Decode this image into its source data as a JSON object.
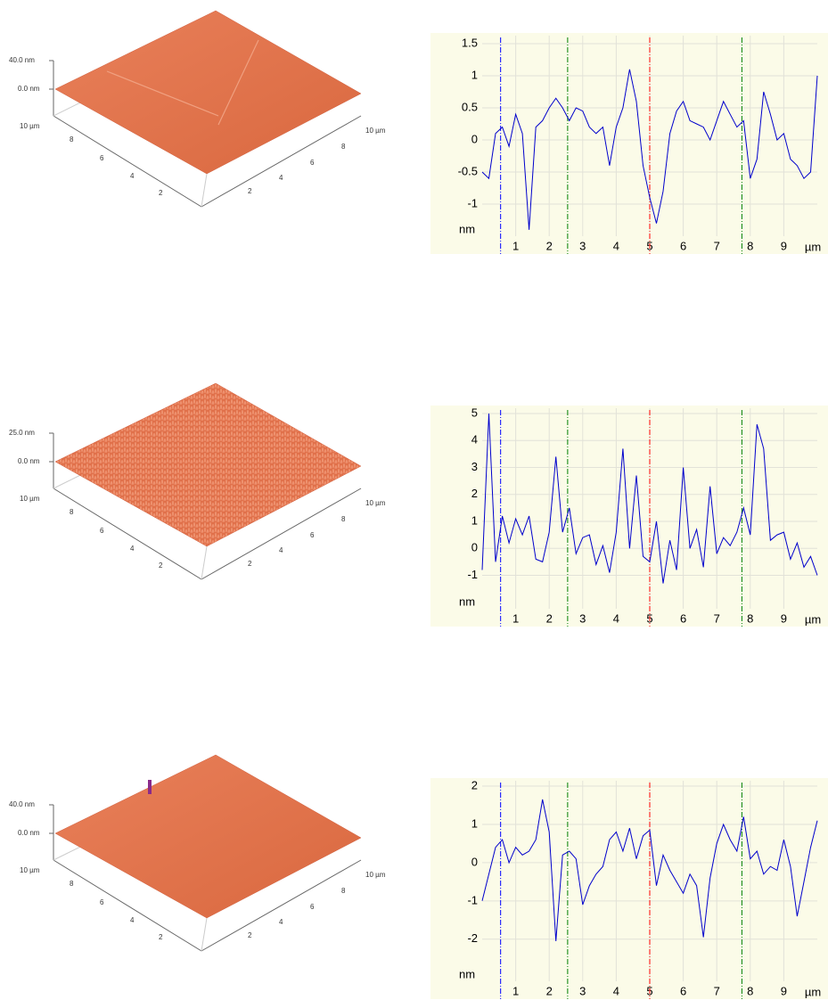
{
  "surfaces": [
    {
      "z_labels": [
        "40.0 nm",
        "0.0 nm"
      ],
      "left_labels": [
        "10 µm",
        "8",
        "6",
        "4",
        "2"
      ],
      "right_labels": [
        "10 µm",
        "8",
        "6",
        "4",
        "2"
      ]
    },
    {
      "z_labels": [
        "25.0 nm",
        "0.0 nm"
      ],
      "left_labels": [
        "10 µm",
        "8",
        "6",
        "4",
        "2"
      ],
      "right_labels": [
        "10 µm",
        "8",
        "6",
        "4",
        "2"
      ]
    },
    {
      "z_labels": [
        "40.0 nm",
        "0.0 nm"
      ],
      "left_labels": [
        "10 µm",
        "8",
        "6",
        "4",
        "2"
      ],
      "right_labels": [
        "10 µm",
        "8",
        "6",
        "4",
        "2"
      ]
    }
  ],
  "chart_data": [
    {
      "type": "line",
      "xlabel": "µm",
      "ylabel": "nm",
      "xlim": [
        0,
        10
      ],
      "ylim": [
        -1.5,
        1.625
      ],
      "xticks": [
        1,
        2,
        3,
        4,
        5,
        6,
        7,
        8,
        9
      ],
      "yticks": [
        1.5,
        1,
        0.5,
        0,
        -0.5,
        -1
      ],
      "grid": true,
      "markers": [
        {
          "x": 0.55,
          "color": "#0000ff"
        },
        {
          "x": 2.55,
          "color": "#008000"
        },
        {
          "x": 5.0,
          "color": "#ff0000"
        },
        {
          "x": 7.75,
          "color": "#008000"
        }
      ],
      "x": [
        0,
        0.2,
        0.4,
        0.6,
        0.8,
        1,
        1.2,
        1.4,
        1.6,
        1.8,
        2,
        2.2,
        2.4,
        2.6,
        2.8,
        3,
        3.2,
        3.4,
        3.6,
        3.8,
        4,
        4.2,
        4.4,
        4.6,
        4.8,
        5,
        5.2,
        5.4,
        5.6,
        5.8,
        6,
        6.2,
        6.4,
        6.6,
        6.8,
        7,
        7.2,
        7.4,
        7.6,
        7.8,
        8,
        8.2,
        8.4,
        8.6,
        8.8,
        9,
        9.2,
        9.4,
        9.6,
        9.8,
        10
      ],
      "series": [
        {
          "color": "#0000cc",
          "values": [
            -0.5,
            -0.6,
            0.1,
            0.2,
            -0.1,
            0.4,
            0.1,
            -1.4,
            0.2,
            0.3,
            0.5,
            0.65,
            0.5,
            0.3,
            0.5,
            0.45,
            0.2,
            0.1,
            0.2,
            -0.4,
            0.2,
            0.5,
            1.1,
            0.6,
            -0.4,
            -0.9,
            -1.3,
            -0.8,
            0.1,
            0.45,
            0.6,
            0.3,
            0.25,
            0.2,
            0.0,
            0.3,
            0.6,
            0.4,
            0.2,
            0.3,
            -0.6,
            -0.3,
            0.75,
            0.4,
            0.0,
            0.1,
            -0.3,
            -0.4,
            -0.6,
            -0.5,
            1.0
          ]
        }
      ]
    },
    {
      "type": "line",
      "xlabel": "µm",
      "ylabel": "nm",
      "xlim": [
        0,
        10
      ],
      "ylim": [
        -2.24,
        5.2
      ],
      "xticks": [
        1,
        2,
        3,
        4,
        5,
        6,
        7,
        8,
        9
      ],
      "yticks": [
        5,
        4,
        3,
        2,
        1,
        0,
        -1
      ],
      "grid": true,
      "markers": [
        {
          "x": 0.55,
          "color": "#0000ff"
        },
        {
          "x": 2.55,
          "color": "#008000"
        },
        {
          "x": 5.0,
          "color": "#ff0000"
        },
        {
          "x": 7.75,
          "color": "#008000"
        }
      ],
      "x": [
        0,
        0.2,
        0.4,
        0.6,
        0.8,
        1,
        1.2,
        1.4,
        1.6,
        1.8,
        2,
        2.2,
        2.4,
        2.6,
        2.8,
        3,
        3.2,
        3.4,
        3.6,
        3.8,
        4,
        4.2,
        4.4,
        4.6,
        4.8,
        5,
        5.2,
        5.4,
        5.6,
        5.8,
        6,
        6.2,
        6.4,
        6.6,
        6.8,
        7,
        7.2,
        7.4,
        7.6,
        7.8,
        8,
        8.2,
        8.4,
        8.6,
        8.8,
        9,
        9.2,
        9.4,
        9.6,
        9.8,
        10
      ],
      "series": [
        {
          "color": "#0000cc",
          "values": [
            -0.8,
            5.0,
            -0.5,
            1.2,
            0.2,
            1.1,
            0.5,
            1.2,
            -0.4,
            -0.5,
            0.6,
            3.4,
            0.6,
            1.5,
            -0.2,
            0.4,
            0.5,
            -0.6,
            0.1,
            -0.9,
            0.6,
            3.7,
            0.0,
            2.7,
            -0.3,
            -0.5,
            1.0,
            -1.3,
            0.3,
            -0.8,
            3.0,
            0.0,
            0.7,
            -0.7,
            2.3,
            -0.2,
            0.4,
            0.1,
            0.6,
            1.5,
            0.5,
            4.6,
            3.7,
            0.3,
            0.5,
            0.6,
            -0.4,
            0.2,
            -0.7,
            -0.3,
            -1.0
          ]
        }
      ]
    },
    {
      "type": "line",
      "xlabel": "µm",
      "ylabel": "nm",
      "xlim": [
        0,
        10
      ],
      "ylim": [
        -3.1,
        2.14
      ],
      "xticks": [
        1,
        2,
        3,
        4,
        5,
        6,
        7,
        8,
        9
      ],
      "yticks": [
        2,
        1,
        0,
        -1,
        -2
      ],
      "grid": true,
      "markers": [
        {
          "x": 0.55,
          "color": "#0000ff"
        },
        {
          "x": 2.55,
          "color": "#008000"
        },
        {
          "x": 5.0,
          "color": "#ff0000"
        },
        {
          "x": 7.75,
          "color": "#008000"
        }
      ],
      "x": [
        0,
        0.2,
        0.4,
        0.6,
        0.8,
        1,
        1.2,
        1.4,
        1.6,
        1.8,
        2,
        2.2,
        2.4,
        2.6,
        2.8,
        3,
        3.2,
        3.4,
        3.6,
        3.8,
        4,
        4.2,
        4.4,
        4.6,
        4.8,
        5,
        5.2,
        5.4,
        5.6,
        5.8,
        6,
        6.2,
        6.4,
        6.6,
        6.8,
        7,
        7.2,
        7.4,
        7.6,
        7.8,
        8,
        8.2,
        8.4,
        8.6,
        8.8,
        9,
        9.2,
        9.4,
        9.6,
        9.8,
        10
      ],
      "series": [
        {
          "color": "#0000cc",
          "values": [
            -1.0,
            -0.3,
            0.4,
            0.6,
            0.0,
            0.4,
            0.2,
            0.3,
            0.6,
            1.65,
            0.8,
            -2.05,
            0.2,
            0.3,
            0.1,
            -1.1,
            -0.6,
            -0.3,
            -0.1,
            0.6,
            0.8,
            0.3,
            0.9,
            0.1,
            0.7,
            0.85,
            -0.6,
            0.2,
            -0.2,
            -0.5,
            -0.8,
            -0.3,
            -0.6,
            -1.95,
            -0.4,
            0.5,
            1.0,
            0.6,
            0.3,
            1.2,
            0.1,
            0.3,
            -0.3,
            -0.1,
            -0.2,
            0.6,
            -0.1,
            -1.4,
            -0.5,
            0.4,
            1.1
          ]
        }
      ]
    }
  ]
}
